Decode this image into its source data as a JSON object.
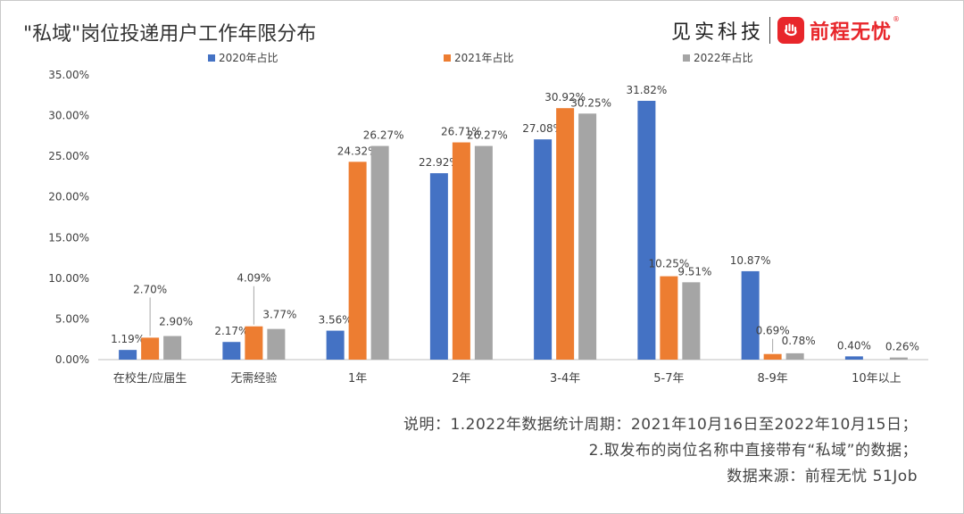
{
  "title": "\"私域\"岗位投递用户工作年限分布",
  "brand": {
    "company": "见实科技",
    "partner": "前程无忧",
    "partner_mark": "®",
    "accent": "#e8262b"
  },
  "notes": [
    "说明：1.2022年数据统计周期：2021年10月16日至2022年10月15日；",
    "2.取发布的岗位名称中直接带有“私域”的数据；",
    "数据来源：前程无忧 51Job"
  ],
  "chart_data": {
    "type": "bar",
    "categories": [
      "在校生/应届生",
      "无需经验",
      "1年",
      "2年",
      "3-4年",
      "5-7年",
      "8-9年",
      "10年以上"
    ],
    "series": [
      {
        "name": "2020年占比",
        "color": "#4472c4",
        "values": [
          1.19,
          2.17,
          3.56,
          22.92,
          27.08,
          31.82,
          10.87,
          0.4
        ],
        "labels": [
          "1.19%",
          "2.17%",
          "3.56%",
          "22.92%",
          "27.08%",
          "31.82%",
          "10.87%",
          "0.40%"
        ]
      },
      {
        "name": "2021年占比",
        "color": "#ed7d31",
        "values": [
          2.7,
          4.09,
          24.32,
          26.71,
          30.92,
          10.25,
          0.69,
          0.0
        ],
        "labels": [
          "2.70%",
          "4.09%",
          "24.32%",
          "26.71%",
          "30.92%",
          "10.25%",
          "0.69%",
          ""
        ]
      },
      {
        "name": "2022年占比",
        "color": "#a5a5a5",
        "values": [
          2.9,
          3.77,
          26.27,
          26.27,
          30.25,
          9.51,
          0.78,
          0.26
        ],
        "labels": [
          "2.90%",
          "3.77%",
          "26.27%",
          "26.27%",
          "30.25%",
          "9.51%",
          "0.78%",
          "0.26%"
        ]
      }
    ],
    "yticks": [
      "0.00%",
      "5.00%",
      "10.00%",
      "15.00%",
      "20.00%",
      "25.00%",
      "30.00%",
      "35.00%"
    ],
    "ylim": [
      0,
      35
    ],
    "grid": false,
    "legend": "top"
  }
}
